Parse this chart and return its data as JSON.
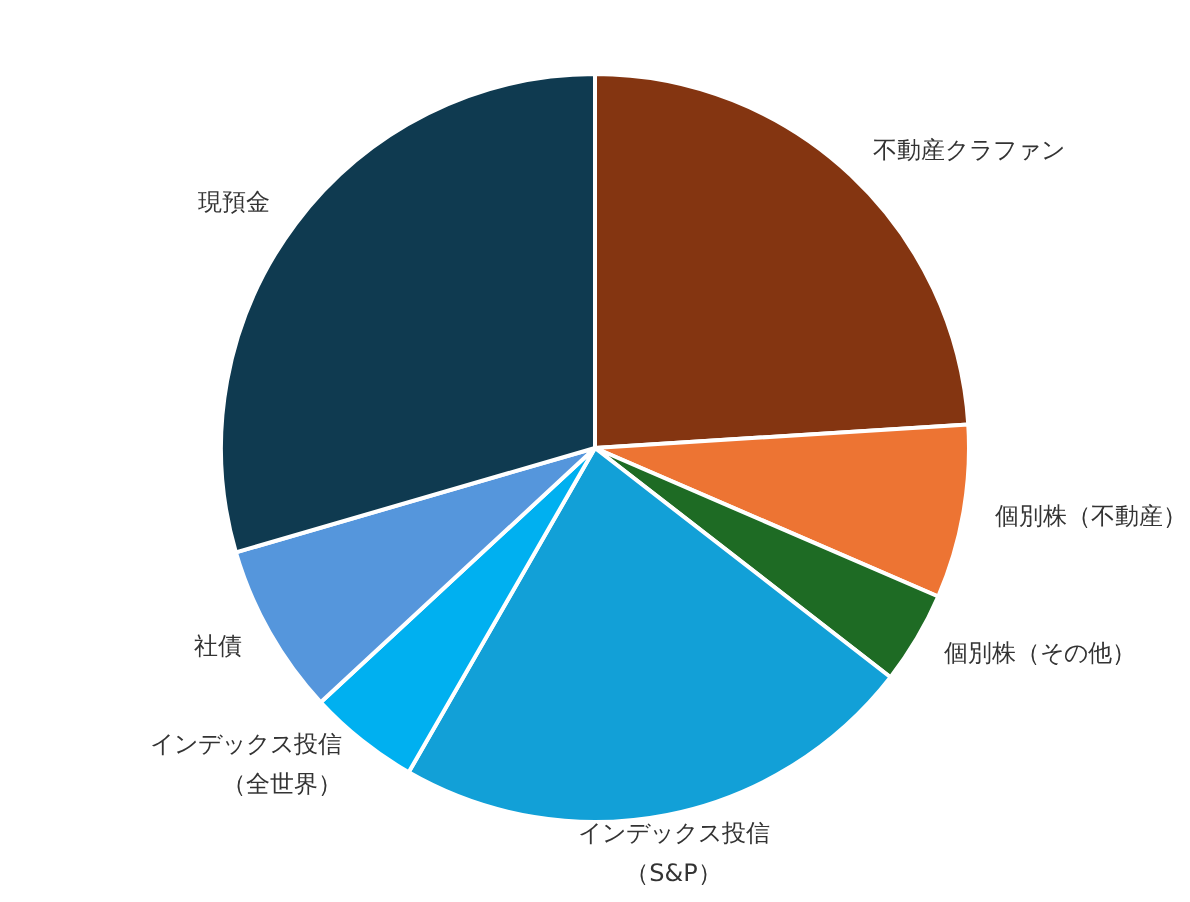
{
  "chart_data": {
    "type": "pie",
    "categories": [
      "不動産クラファン",
      "個別株（不動産）",
      "個別株（その他）",
      "インデックス投信（S&P）",
      "インデックス投信（全世界）",
      "社債",
      "現預金"
    ],
    "values": [
      24,
      7.5,
      4,
      22.8,
      4.8,
      7.4,
      29.5
    ],
    "colors": [
      "#843511",
      "#ed7433",
      "#1e6b24",
      "#12a0d7",
      "#00b0f0",
      "#5596dc",
      "#0f3a50"
    ]
  }
}
